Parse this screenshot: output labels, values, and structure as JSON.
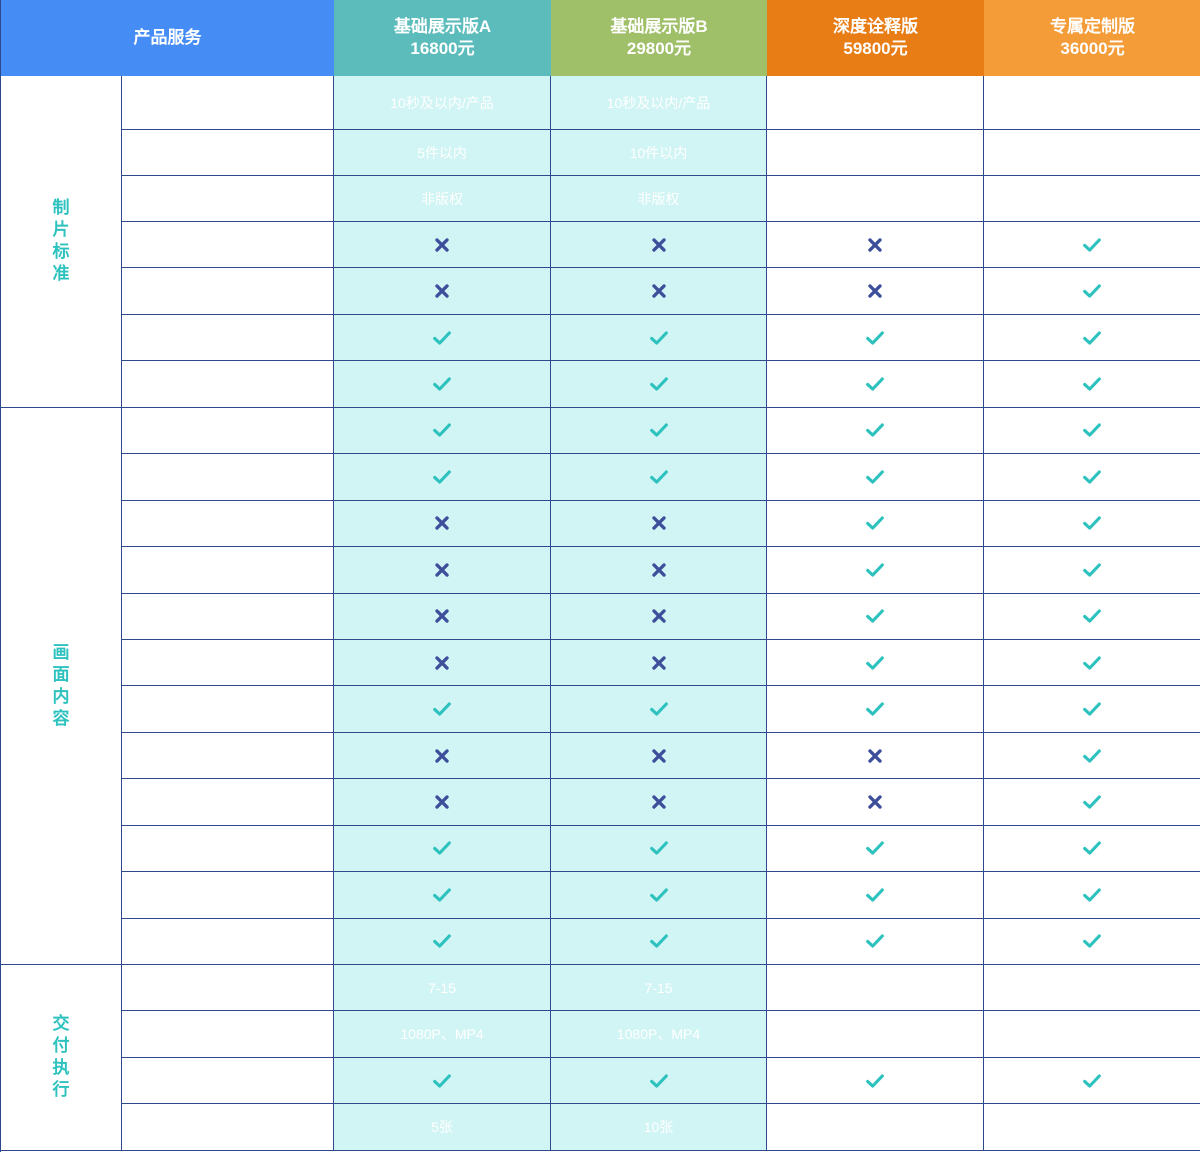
{
  "header": {
    "service_label": "产品服务",
    "plans": [
      {
        "name": "基础展示版A",
        "price": "16800元",
        "color": "#5bbcbb"
      },
      {
        "name": "基础展示版B",
        "price": "29800元",
        "color": "#9fbf68"
      },
      {
        "name": "深度诠释版",
        "price": "59800元",
        "color": "#e87d16"
      },
      {
        "name": "专属定制版",
        "price": "36000元",
        "color": "#f39c38"
      }
    ]
  },
  "colors": {
    "check": "#2ec2bf",
    "cross": "#3d4f9a",
    "tint": "#d1f5f4",
    "border": "#2f4a8c"
  },
  "categories": [
    {
      "name": "制片标准",
      "rows": 7
    },
    {
      "name": "画面内容",
      "rows": 12
    },
    {
      "name": "交付执行",
      "rows": 4
    }
  ],
  "rows": [
    {
      "cells": [
        "10秒及以内/产品",
        "10秒及以内/产品",
        "",
        ""
      ]
    },
    {
      "cells": [
        "5件以内",
        "10件以内",
        "",
        ""
      ]
    },
    {
      "cells": [
        "非版权",
        "非版权",
        "",
        ""
      ]
    },
    {
      "cells": [
        "cross-icon",
        "cross-icon",
        "cross-icon",
        "check-icon"
      ]
    },
    {
      "cells": [
        "cross-icon",
        "cross-icon",
        "cross-icon",
        "check-icon"
      ]
    },
    {
      "cells": [
        "check-icon",
        "check-icon",
        "check-icon",
        "check-icon"
      ]
    },
    {
      "cells": [
        "check-icon",
        "check-icon",
        "check-icon",
        "check-icon"
      ]
    },
    {
      "cells": [
        "check-icon",
        "check-icon",
        "check-icon",
        "check-icon"
      ]
    },
    {
      "cells": [
        "check-icon",
        "check-icon",
        "check-icon",
        "check-icon"
      ]
    },
    {
      "cells": [
        "cross-icon",
        "cross-icon",
        "check-icon",
        "check-icon"
      ]
    },
    {
      "cells": [
        "cross-icon",
        "cross-icon",
        "check-icon",
        "check-icon"
      ]
    },
    {
      "cells": [
        "cross-icon",
        "cross-icon",
        "check-icon",
        "check-icon"
      ]
    },
    {
      "cells": [
        "cross-icon",
        "cross-icon",
        "check-icon",
        "check-icon"
      ]
    },
    {
      "cells": [
        "check-icon",
        "check-icon",
        "check-icon",
        "check-icon"
      ]
    },
    {
      "cells": [
        "cross-icon",
        "cross-icon",
        "cross-icon",
        "check-icon"
      ]
    },
    {
      "cells": [
        "cross-icon",
        "cross-icon",
        "cross-icon",
        "check-icon"
      ]
    },
    {
      "cells": [
        "check-icon",
        "check-icon",
        "check-icon",
        "check-icon"
      ]
    },
    {
      "cells": [
        "check-icon",
        "check-icon",
        "check-icon",
        "check-icon"
      ]
    },
    {
      "cells": [
        "check-icon",
        "check-icon",
        "check-icon",
        "check-icon"
      ]
    },
    {
      "cells": [
        "7-15",
        "7-15",
        "",
        ""
      ]
    },
    {
      "cells": [
        "1080P、MP4",
        "1080P、MP4",
        "",
        ""
      ]
    },
    {
      "cells": [
        "check-icon",
        "check-icon",
        "check-icon",
        "check-icon"
      ]
    },
    {
      "cells": [
        "5张",
        "10张",
        "",
        ""
      ]
    }
  ]
}
